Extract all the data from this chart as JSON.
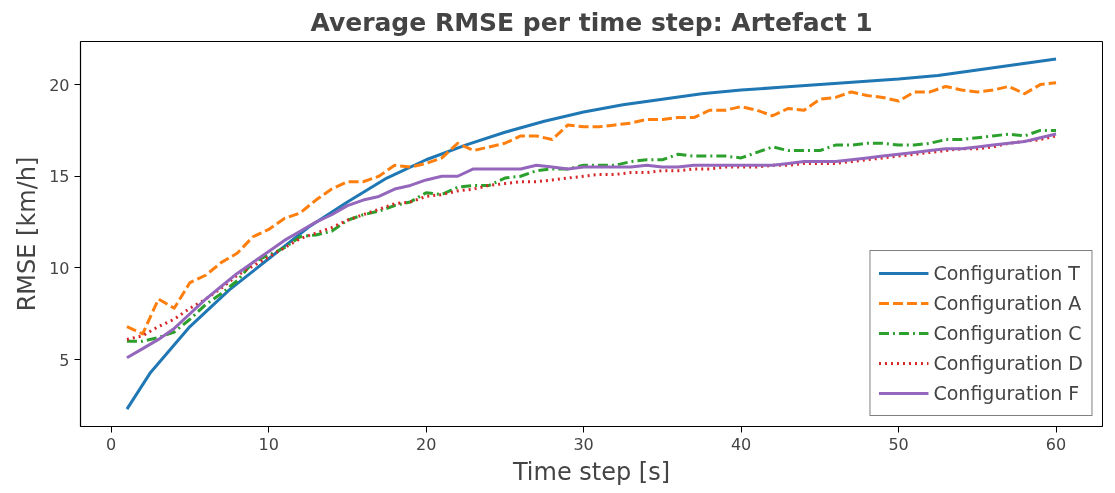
{
  "chart_data": {
    "type": "line",
    "title": "Average RMSE per time step: Artefact 1",
    "xlabel": "Time step [s]",
    "ylabel": "RMSE [km/h]",
    "xlim": [
      -1.95,
      62.95
    ],
    "ylim": [
      1.35,
      22.35
    ],
    "xticks": [
      0,
      10,
      20,
      30,
      40,
      50,
      60
    ],
    "yticks": [
      5,
      10,
      15,
      20
    ],
    "grid": false,
    "legend": "bottom right",
    "x": [
      1,
      2,
      3,
      4,
      5,
      6,
      7,
      8,
      9,
      10,
      11,
      12,
      13,
      14,
      15,
      16,
      17,
      18,
      19,
      20,
      21,
      22,
      23,
      24,
      25,
      26,
      27,
      28,
      29,
      30,
      31,
      32,
      33,
      34,
      35,
      36,
      37,
      38,
      39,
      40,
      41,
      42,
      43,
      44,
      45,
      46,
      47,
      48,
      49,
      50,
      51,
      52,
      53,
      54,
      55,
      56,
      57,
      58,
      59,
      60
    ],
    "series": [
      {
        "name": "Configuration T",
        "color": "#1f77b4",
        "line_style": "solid",
        "x": [
          1,
          2.5,
          5,
          7.5,
          10,
          12.5,
          15,
          17.5,
          20,
          22.5,
          25,
          27.5,
          30,
          32.5,
          35,
          37.5,
          40,
          42.5,
          45,
          47.5,
          50,
          52.5,
          55,
          57.5,
          60
        ],
        "values": [
          2.3,
          4.3,
          6.8,
          8.8,
          10.5,
          12.2,
          13.6,
          14.9,
          15.9,
          16.7,
          17.4,
          18.0,
          18.5,
          18.9,
          19.2,
          19.5,
          19.7,
          19.85,
          20.0,
          20.15,
          20.3,
          20.5,
          20.8,
          21.1,
          21.4
        ]
      },
      {
        "name": "Configuration A",
        "color": "#ff7f0e",
        "line_style": "dashed",
        "values": [
          6.8,
          6.4,
          8.3,
          7.8,
          9.2,
          9.6,
          10.3,
          10.8,
          11.7,
          12.1,
          12.7,
          13.0,
          13.7,
          14.3,
          14.7,
          14.7,
          15.0,
          15.6,
          15.5,
          15.7,
          16.0,
          16.8,
          16.4,
          16.6,
          16.8,
          17.2,
          17.2,
          17.0,
          17.8,
          17.7,
          17.7,
          17.8,
          17.9,
          18.1,
          18.1,
          18.2,
          18.2,
          18.6,
          18.6,
          18.8,
          18.6,
          18.3,
          18.7,
          18.6,
          19.2,
          19.3,
          19.6,
          19.4,
          19.3,
          19.1,
          19.6,
          19.6,
          19.9,
          19.7,
          19.6,
          19.7,
          19.9,
          19.5,
          20.0,
          20.1
        ]
      },
      {
        "name": "Configuration C",
        "color": "#2ca02c",
        "line_style": "dashdot",
        "values": [
          6.0,
          6.0,
          6.2,
          6.5,
          7.2,
          8.0,
          8.6,
          9.3,
          10.3,
          10.7,
          11.1,
          11.7,
          11.8,
          12.0,
          12.6,
          12.9,
          13.1,
          13.4,
          13.6,
          14.1,
          14.0,
          14.4,
          14.5,
          14.5,
          14.9,
          15.0,
          15.3,
          15.4,
          15.4,
          15.6,
          15.6,
          15.6,
          15.8,
          15.9,
          15.9,
          16.2,
          16.1,
          16.1,
          16.1,
          16.0,
          16.3,
          16.6,
          16.4,
          16.4,
          16.4,
          16.7,
          16.7,
          16.8,
          16.8,
          16.7,
          16.7,
          16.8,
          17.0,
          17.0,
          17.1,
          17.2,
          17.3,
          17.2,
          17.5,
          17.5
        ]
      },
      {
        "name": "Configuration D",
        "color": "#d62728",
        "line_style": "dotted",
        "values": [
          6.1,
          6.3,
          6.8,
          7.2,
          7.8,
          8.3,
          8.9,
          9.6,
          10.1,
          10.6,
          11.1,
          11.6,
          11.9,
          12.2,
          12.6,
          12.9,
          13.2,
          13.5,
          13.6,
          13.9,
          14.0,
          14.2,
          14.3,
          14.5,
          14.6,
          14.7,
          14.7,
          14.8,
          14.9,
          15.0,
          15.1,
          15.1,
          15.2,
          15.2,
          15.3,
          15.3,
          15.4,
          15.4,
          15.5,
          15.5,
          15.5,
          15.6,
          15.6,
          15.7,
          15.7,
          15.7,
          15.8,
          15.9,
          16.0,
          16.1,
          16.2,
          16.3,
          16.4,
          16.5,
          16.5,
          16.6,
          16.8,
          16.9,
          17.0,
          17.2
        ]
      },
      {
        "name": "Configuration F",
        "color": "#9467bd",
        "line_style": "solid",
        "values": [
          5.1,
          5.6,
          6.1,
          6.7,
          7.5,
          8.3,
          9.0,
          9.7,
          10.3,
          10.9,
          11.5,
          12.0,
          12.5,
          12.9,
          13.4,
          13.7,
          13.9,
          14.3,
          14.5,
          14.8,
          15.0,
          15.0,
          15.4,
          15.4,
          15.4,
          15.4,
          15.6,
          15.5,
          15.4,
          15.5,
          15.5,
          15.5,
          15.5,
          15.6,
          15.5,
          15.5,
          15.6,
          15.6,
          15.6,
          15.6,
          15.6,
          15.6,
          15.7,
          15.8,
          15.8,
          15.8,
          15.9,
          16.0,
          16.1,
          16.2,
          16.3,
          16.4,
          16.5,
          16.5,
          16.6,
          16.7,
          16.8,
          16.9,
          17.1,
          17.3
        ]
      }
    ]
  }
}
